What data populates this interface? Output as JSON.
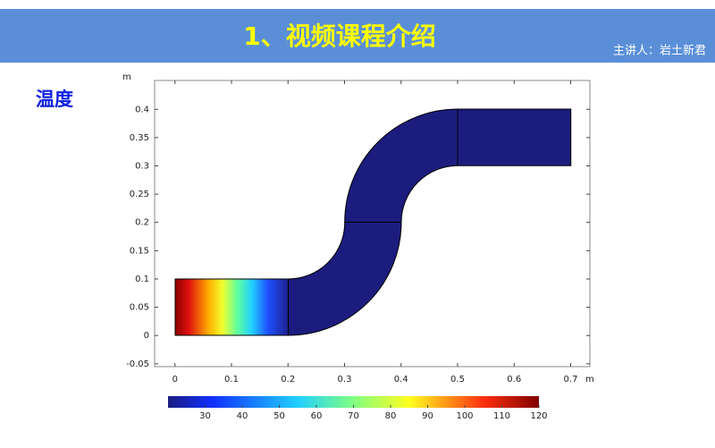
{
  "header": {
    "title": "1、视频课程介绍",
    "speaker": "主讲人：岩土新君"
  },
  "label": "温度",
  "plot": {
    "x_unit": "m",
    "y_unit": "m",
    "xlim": [
      -0.036,
      0.734
    ],
    "xticks": [
      0,
      0.1,
      0.2,
      0.3,
      0.4,
      0.5,
      0.6,
      0.7
    ],
    "ylim": [
      -0.055,
      0.451
    ],
    "yticks": [
      -0.05,
      0,
      0.05,
      0.1,
      0.15,
      0.2,
      0.25,
      0.3,
      0.35,
      0.4
    ],
    "colorbar": {
      "lim": [
        20,
        120
      ],
      "ticks": [
        30,
        40,
        50,
        60,
        70,
        80,
        90,
        100,
        110,
        120
      ]
    }
  }
}
